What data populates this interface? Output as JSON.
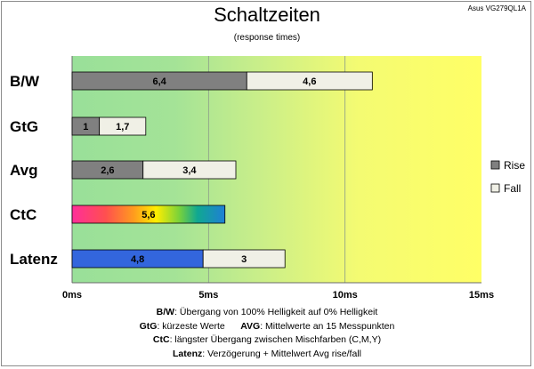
{
  "header": {
    "title": "Schaltzeiten",
    "subtitle": "(response times)",
    "model": "Asus VG279QL1A"
  },
  "colors": {
    "rise": "#808080",
    "fall": "#f0f0e6",
    "latenz_rise": "#3366dd",
    "background_start": "#99e099",
    "background_end": "#ffff66"
  },
  "chart_data": {
    "type": "bar",
    "orientation": "horizontal",
    "stacked": true,
    "categories": [
      "B/W",
      "GtG",
      "Avg",
      "CtC",
      "Latenz"
    ],
    "series": [
      {
        "name": "Rise",
        "values": [
          6.4,
          1,
          2.6,
          5.6,
          4.8
        ]
      },
      {
        "name": "Fall",
        "values": [
          4.6,
          1.7,
          3.4,
          null,
          3
        ]
      }
    ],
    "value_labels": [
      [
        "6,4",
        "4,6"
      ],
      [
        "1",
        "1,7"
      ],
      [
        "2,6",
        "3,4"
      ],
      [
        "5,6",
        ""
      ],
      [
        "4,8",
        "3"
      ]
    ],
    "x_ticks": [
      "0ms",
      "5ms",
      "10ms",
      "15ms"
    ],
    "xlim": [
      0,
      15
    ],
    "grid": true,
    "legend": {
      "position": "right",
      "items": [
        "Rise",
        "Fall"
      ]
    }
  },
  "notes": [
    {
      "key": "B/W",
      "text": ":  Übergang von 100% Helligkeit auf 0% Helligkeit"
    },
    {
      "key": "GtG",
      "text": ": kürzeste  Werte",
      "key2": "AVG",
      "text2": ": Mittelwerte  an 15 Messpunkten"
    },
    {
      "key": "CtC",
      "text": ": längster Übergang  zwischen Mischfarben (C,M,Y)"
    },
    {
      "key": "Latenz",
      "text": ": Verzögerung  + Mittelwert Avg rise/fall"
    }
  ]
}
